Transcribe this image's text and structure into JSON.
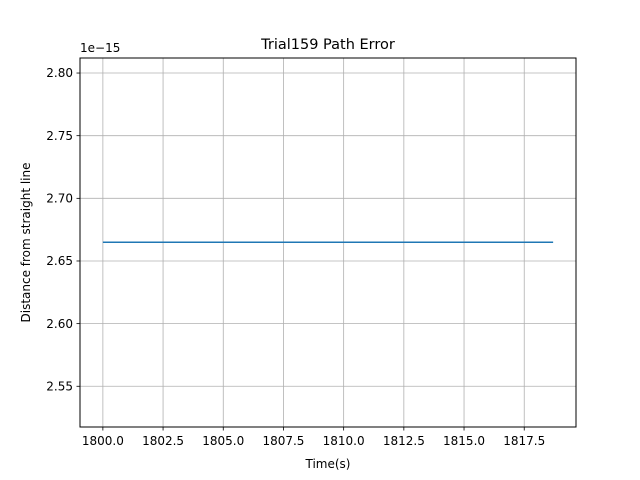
{
  "chart_data": {
    "type": "line",
    "title": "Trial159 Path Error",
    "xlabel": "Time(s)",
    "ylabel": "Distance from straight line",
    "y_offset_label": "1e−15",
    "xlim": [
      1799.05,
      1819.65
    ],
    "ylim": [
      2.5175,
      2.812
    ],
    "x_ticks": [
      1800.0,
      1802.5,
      1805.0,
      1807.5,
      1810.0,
      1812.5,
      1815.0,
      1817.5
    ],
    "x_tick_labels": [
      "1800.0",
      "1802.5",
      "1805.0",
      "1807.5",
      "1810.0",
      "1812.5",
      "1815.0",
      "1817.5"
    ],
    "y_ticks": [
      2.55,
      2.6,
      2.65,
      2.7,
      2.75,
      2.8
    ],
    "y_tick_labels": [
      "2.55",
      "2.60",
      "2.65",
      "2.70",
      "2.75",
      "2.80"
    ],
    "grid": true,
    "series": [
      {
        "color": "#1f77b4",
        "x": [
          1800.0,
          1818.7
        ],
        "y": [
          2.665,
          2.665
        ]
      }
    ]
  }
}
